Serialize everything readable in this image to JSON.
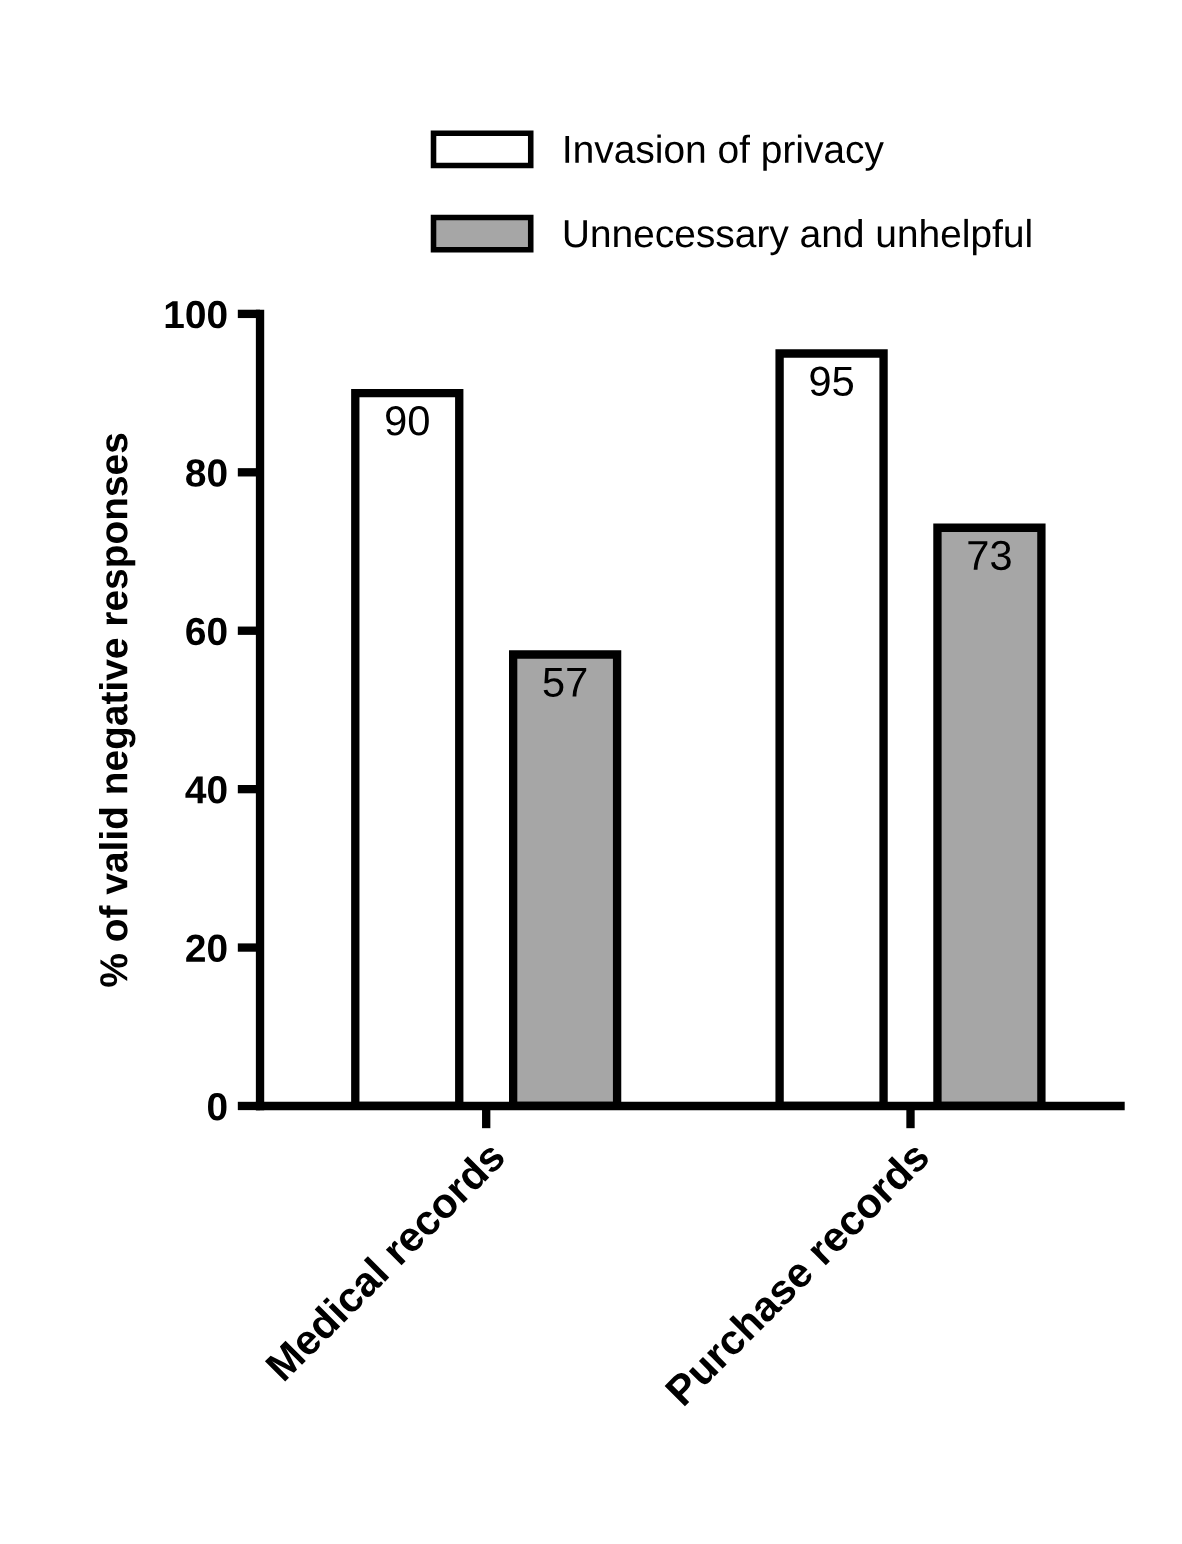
{
  "chart_data": {
    "type": "bar",
    "ylabel": "% of valid negative responses",
    "categories": [
      "Medical records",
      "Purchase records"
    ],
    "series": [
      {
        "name": "Invasion of privacy",
        "color": "#ffffff",
        "values": [
          90,
          95
        ]
      },
      {
        "name": "Unnecessary and unhelpful",
        "color": "#a6a6a6",
        "values": [
          57,
          73
        ]
      }
    ],
    "ylim": [
      0,
      100
    ],
    "yticks": [
      0,
      20,
      40,
      60,
      80,
      100
    ],
    "grid": false,
    "legend": "top",
    "data_labels": true
  }
}
